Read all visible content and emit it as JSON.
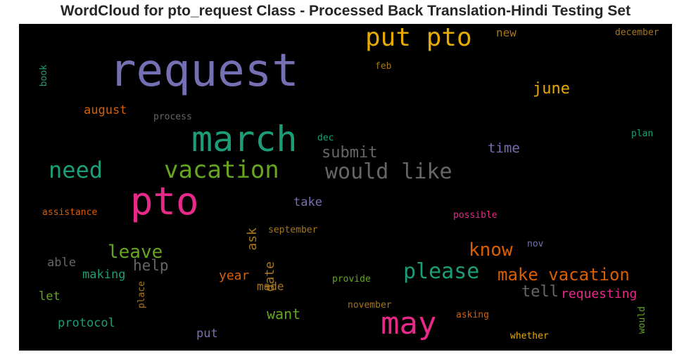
{
  "title": "WordCloud for pto_request Class - Processed Back Translation-Hindi Testing Set",
  "chart_data": {
    "type": "wordcloud",
    "background": "#000000",
    "words": [
      {
        "text": "request",
        "color": "#7570b3",
        "orientation": "horizontal"
      },
      {
        "text": "put pto",
        "color": "#e6ab02",
        "orientation": "horizontal"
      },
      {
        "text": "march",
        "color": "#1b9e77",
        "orientation": "horizontal"
      },
      {
        "text": "pto",
        "color": "#e7298a",
        "orientation": "horizontal"
      },
      {
        "text": "vacation",
        "color": "#66a61e",
        "orientation": "horizontal"
      },
      {
        "text": "may",
        "color": "#e7298a",
        "orientation": "horizontal"
      },
      {
        "text": "would like",
        "color": "#666666",
        "orientation": "horizontal"
      },
      {
        "text": "need",
        "color": "#1b9e77",
        "orientation": "horizontal"
      },
      {
        "text": "please",
        "color": "#1b9e77",
        "orientation": "horizontal"
      },
      {
        "text": "make vacation",
        "color": "#d95f02",
        "orientation": "horizontal"
      },
      {
        "text": "know",
        "color": "#d95f02",
        "orientation": "horizontal"
      },
      {
        "text": "leave",
        "color": "#66a61e",
        "orientation": "horizontal"
      },
      {
        "text": "june",
        "color": "#e6ab02",
        "orientation": "horizontal"
      },
      {
        "text": "submit",
        "color": "#666666",
        "orientation": "horizontal"
      },
      {
        "text": "help",
        "color": "#666666",
        "orientation": "horizontal"
      },
      {
        "text": "tell",
        "color": "#666666",
        "orientation": "horizontal"
      },
      {
        "text": "time",
        "color": "#7570b3",
        "orientation": "horizontal"
      },
      {
        "text": "requesting",
        "color": "#e7298a",
        "orientation": "horizontal"
      },
      {
        "text": "want",
        "color": "#66a61e",
        "orientation": "horizontal"
      },
      {
        "text": "date",
        "color": "#a6761d",
        "orientation": "vertical"
      },
      {
        "text": "ask",
        "color": "#a6761d",
        "orientation": "vertical"
      },
      {
        "text": "august",
        "color": "#d95f02",
        "orientation": "horizontal"
      },
      {
        "text": "new",
        "color": "#a6761d",
        "orientation": "horizontal"
      },
      {
        "text": "year",
        "color": "#d95f02",
        "orientation": "horizontal"
      },
      {
        "text": "made",
        "color": "#a6761d",
        "orientation": "horizontal"
      },
      {
        "text": "making",
        "color": "#1b9e77",
        "orientation": "horizontal"
      },
      {
        "text": "protocol",
        "color": "#1b9e77",
        "orientation": "horizontal"
      },
      {
        "text": "able",
        "color": "#666666",
        "orientation": "horizontal"
      },
      {
        "text": "take",
        "color": "#7570b3",
        "orientation": "horizontal"
      },
      {
        "text": "put",
        "color": "#7570b3",
        "orientation": "horizontal"
      },
      {
        "text": "let",
        "color": "#66a61e",
        "orientation": "horizontal"
      },
      {
        "text": "december",
        "color": "#a6761d",
        "orientation": "horizontal"
      },
      {
        "text": "feb",
        "color": "#a6761d",
        "orientation": "horizontal"
      },
      {
        "text": "book",
        "color": "#1b9e77",
        "orientation": "vertical"
      },
      {
        "text": "process",
        "color": "#666666",
        "orientation": "horizontal"
      },
      {
        "text": "dec",
        "color": "#1b9e77",
        "orientation": "horizontal"
      },
      {
        "text": "plan",
        "color": "#1b9e77",
        "orientation": "horizontal"
      },
      {
        "text": "assistance",
        "color": "#d95f02",
        "orientation": "horizontal"
      },
      {
        "text": "possible",
        "color": "#e7298a",
        "orientation": "horizontal"
      },
      {
        "text": "september",
        "color": "#a6761d",
        "orientation": "horizontal"
      },
      {
        "text": "nov",
        "color": "#7570b3",
        "orientation": "horizontal"
      },
      {
        "text": "provide",
        "color": "#66a61e",
        "orientation": "horizontal"
      },
      {
        "text": "place",
        "color": "#a6761d",
        "orientation": "vertical"
      },
      {
        "text": "november",
        "color": "#a6761d",
        "orientation": "horizontal"
      },
      {
        "text": "asking",
        "color": "#d95f02",
        "orientation": "horizontal"
      },
      {
        "text": "would",
        "color": "#66a61e",
        "orientation": "vertical"
      },
      {
        "text": "whether",
        "color": "#e6ab02",
        "orientation": "horizontal"
      }
    ]
  }
}
